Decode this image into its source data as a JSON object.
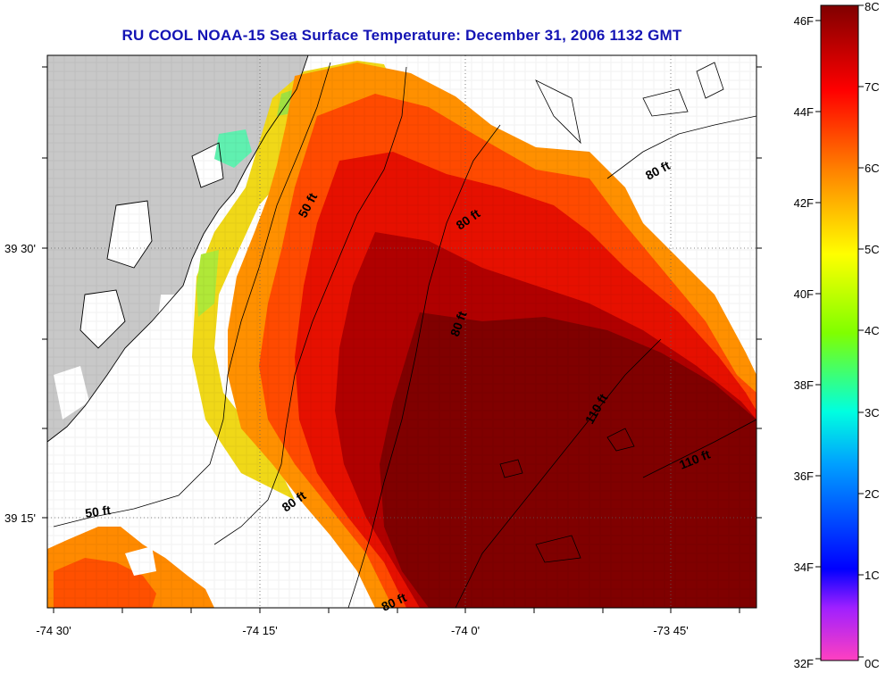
{
  "title": "RU COOL  NOAA-15  Sea Surface Temperature:  December 31, 2006 1132 GMT",
  "map": {
    "lat_labels": [
      "39 30'",
      "39 15'"
    ],
    "lon_labels": [
      "-74 30'",
      "-74 15'",
      "-74 0'",
      "-73 45'"
    ],
    "contour_labels": [
      "50 ft",
      "80 ft",
      "80 ft",
      "80 ft",
      "110 ft",
      "110 ft",
      "50 ft",
      "80 ft",
      "80 ft"
    ],
    "land_color": "#c8c8c8",
    "nodata_color": "#ffffff"
  },
  "colorbar": {
    "fahrenheit_labels": [
      "46F",
      "44F",
      "42F",
      "40F",
      "38F",
      "36F",
      "34F",
      "32F"
    ],
    "celsius_labels": [
      "8C",
      "7C",
      "6C",
      "5C",
      "4C",
      "3C",
      "2C",
      "1C",
      "0C"
    ],
    "colors": [
      "#ff40c0",
      "#a020ff",
      "#0000ff",
      "#00c8ff",
      "#00ffc8",
      "#80ff00",
      "#ffff00",
      "#ff8000",
      "#ff0000",
      "#800000"
    ]
  }
}
